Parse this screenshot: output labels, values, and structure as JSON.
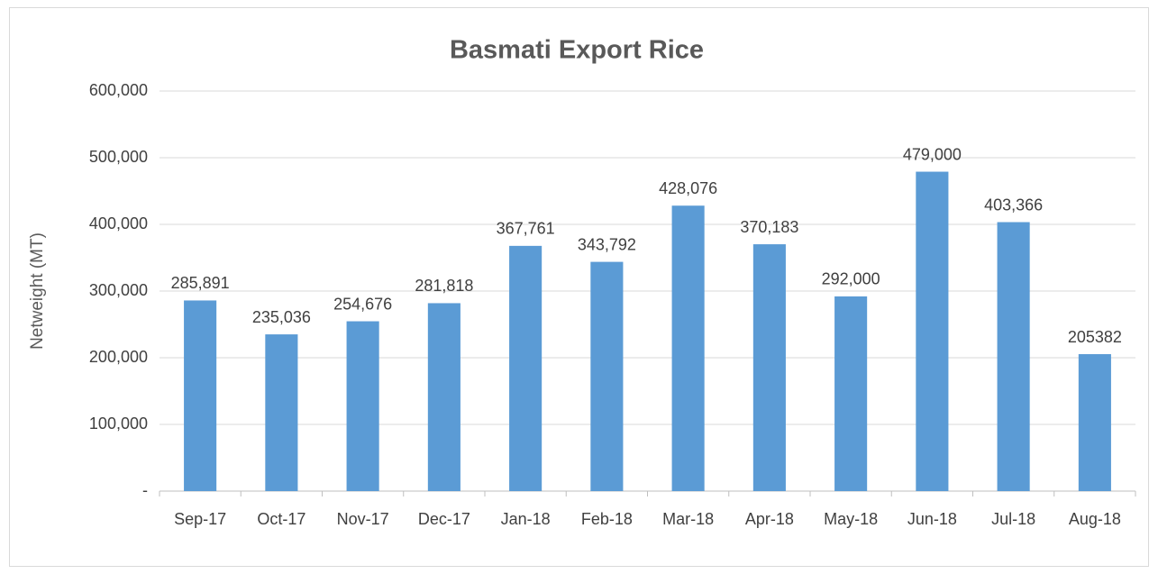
{
  "chart_data": {
    "type": "bar",
    "title": "Basmati Export Rice",
    "y_label": "Netweight (MT)",
    "categories": [
      "Sep-17",
      "Oct-17",
      "Nov-17",
      "Dec-17",
      "Jan-18",
      "Feb-18",
      "Mar-18",
      "Apr-18",
      "May-18",
      "Jun-18",
      "Jul-18",
      "Aug-18"
    ],
    "values": [
      285891,
      235036,
      254676,
      281818,
      367761,
      343792,
      428076,
      370183,
      292000,
      479000,
      403366,
      205382
    ],
    "value_labels": [
      "285,891",
      "235,036",
      "254,676",
      "281,818",
      "367,761",
      "343,792",
      "428,076",
      "370,183",
      "292,000",
      "479,000",
      "403,366",
      "205382"
    ],
    "color": "#5b9bd5",
    "ylim": [
      0,
      600000
    ],
    "yticks": [
      {
        "value": 0,
        "label": "-"
      },
      {
        "value": 100000,
        "label": "100,000"
      },
      {
        "value": 200000,
        "label": "200,000"
      },
      {
        "value": 300000,
        "label": "300,000"
      },
      {
        "value": 400000,
        "label": "400,000"
      },
      {
        "value": 500000,
        "label": "500,000"
      },
      {
        "value": 600000,
        "label": "600,000"
      }
    ],
    "grid": true
  }
}
